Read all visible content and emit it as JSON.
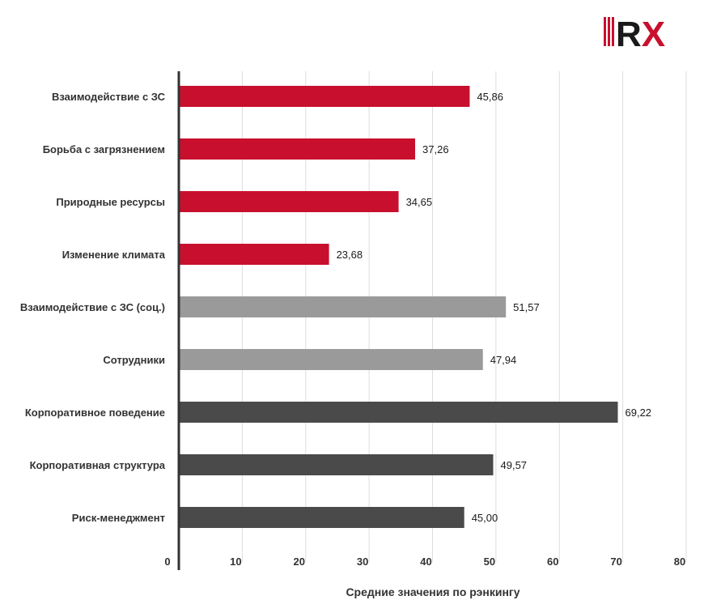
{
  "logo": {
    "text": "RX",
    "colors": {
      "red": "#c8102e",
      "dark": "#1a1a1a"
    }
  },
  "chart_data": {
    "type": "bar",
    "orientation": "horizontal",
    "categories": [
      "Взаимодействие с ЗС",
      "Борьба с загрязнением",
      "Природные ресурсы",
      "Изменение климата",
      "Взаимодействие с ЗС (соц.)",
      "Сотрудники",
      "Корпоративное поведение",
      "Корпоративная структура",
      "Риск-менеджмент"
    ],
    "values": [
      45.86,
      37.26,
      34.65,
      23.68,
      51.57,
      47.94,
      69.22,
      49.57,
      45.0
    ],
    "value_labels": [
      "45,86",
      "37,26",
      "34,65",
      "23,68",
      "51,57",
      "47,94",
      "69,22",
      "49,57",
      "45,00"
    ],
    "groups": [
      "environmental",
      "environmental",
      "environmental",
      "environmental",
      "social",
      "social",
      "governance",
      "governance",
      "governance"
    ],
    "group_colors": {
      "environmental": "#c8102e",
      "social": "#9a9a9a",
      "governance": "#4a4a4a"
    },
    "xlim": [
      0,
      80
    ],
    "xticks": [
      0,
      10,
      20,
      30,
      40,
      50,
      60,
      70,
      80
    ],
    "xtick_labels": [
      "0",
      "10",
      "20",
      "30",
      "40",
      "50",
      "60",
      "70",
      "80"
    ],
    "xlabel": "Средние значения по рэнкингу",
    "ylabel": "",
    "grid": true
  }
}
